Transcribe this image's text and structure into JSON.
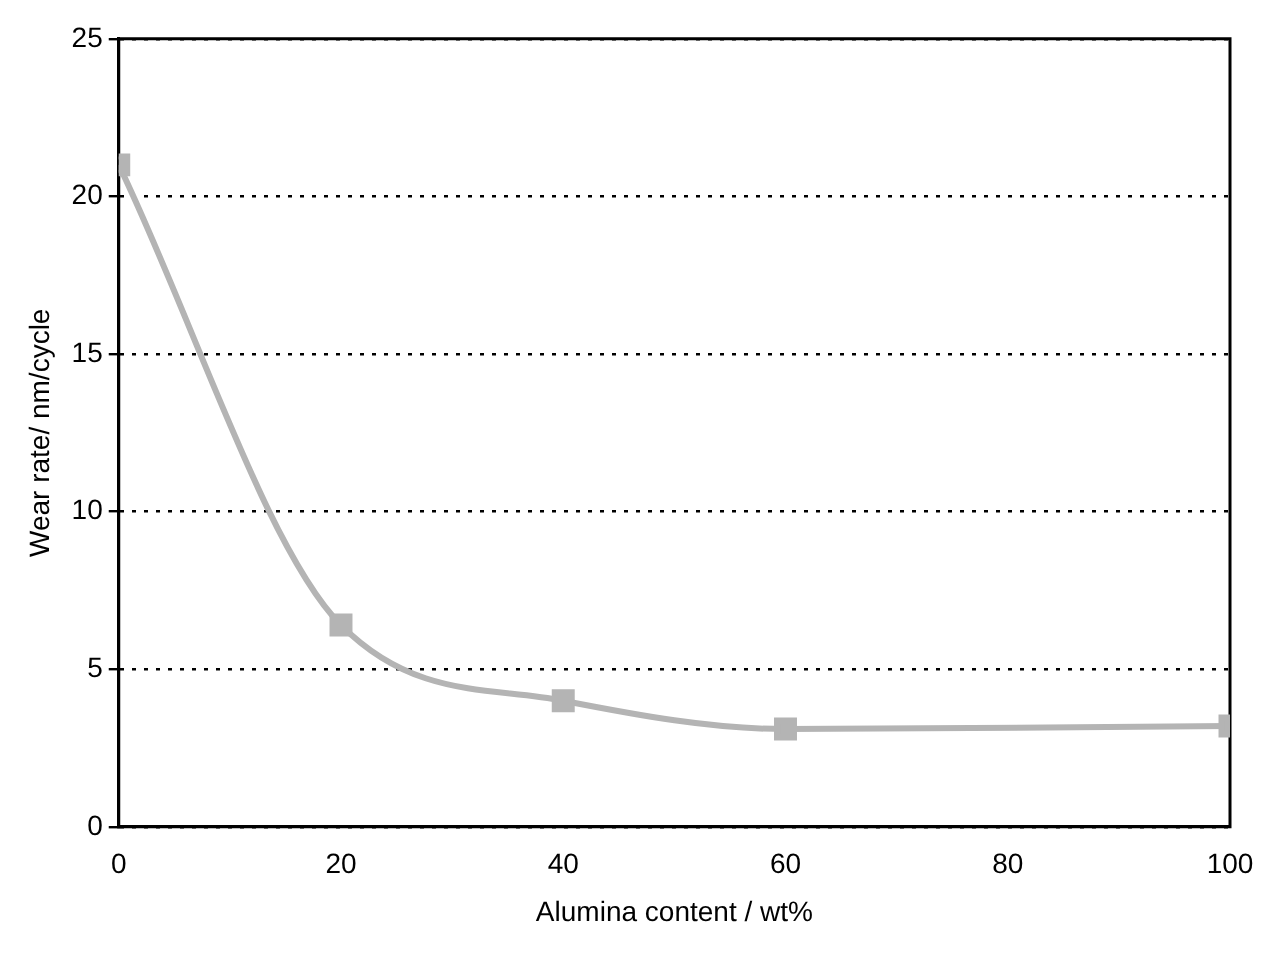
{
  "chart_data": {
    "type": "line",
    "xlabel": "Alumina content / wt%",
    "ylabel": "Wear rate/ nm/cycle",
    "x": [
      0,
      20,
      40,
      60,
      100
    ],
    "series": [
      {
        "color": "#b4b4b4",
        "values": [
          21,
          6.4,
          4,
          3.1,
          3.2
        ]
      }
    ],
    "xlim": [
      0,
      100
    ],
    "xticks": [
      0,
      20,
      40,
      60,
      80,
      100
    ],
    "ylim": [
      0,
      25
    ],
    "yticks": [
      0,
      5,
      10,
      15,
      20,
      25
    ],
    "grid": "y",
    "marker": "square",
    "legend": false
  }
}
